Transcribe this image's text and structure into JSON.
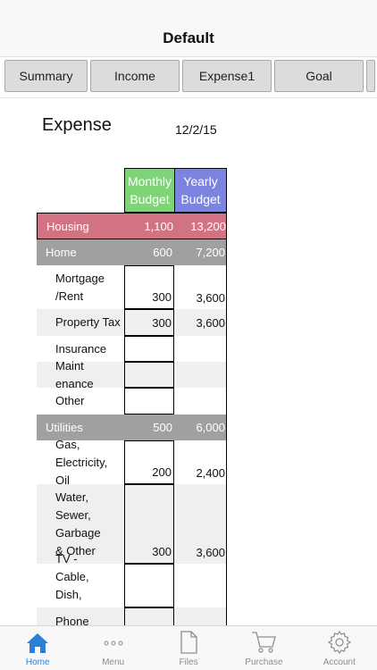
{
  "nav": {
    "title": "Default"
  },
  "tabs": [
    {
      "label": "Summary"
    },
    {
      "label": "Income"
    },
    {
      "label": "Expense1"
    },
    {
      "label": "Goal"
    }
  ],
  "sheet": {
    "title": "Expense",
    "date": "12/2/15",
    "columns": {
      "monthly": "Monthly Budget",
      "yearly": "Yearly Budget"
    },
    "colors": {
      "monthly": "#7ed477",
      "yearly": "#7d84e0",
      "category": "#d17383",
      "group": "#a0a0a0"
    },
    "rows": [
      {
        "label": "Housing",
        "monthly": "1,100",
        "yearly": "13,200"
      },
      {
        "label": "Home",
        "monthly": "600",
        "yearly": "7,200"
      },
      {
        "label": "Mortgage /Rent",
        "monthly": "300",
        "yearly": "3,600"
      },
      {
        "label": "Property Tax",
        "monthly": "300",
        "yearly": "3,600"
      },
      {
        "label": "Insurance",
        "monthly": "",
        "yearly": ""
      },
      {
        "label": "Maint enance",
        "monthly": "",
        "yearly": ""
      },
      {
        "label": "Other",
        "monthly": "",
        "yearly": ""
      },
      {
        "label": "Utilities",
        "monthly": "500",
        "yearly": "6,000"
      },
      {
        "label": "Gas, Electricity, Oil",
        "monthly": "200",
        "yearly": "2,400"
      },
      {
        "label": "Water, Sewer, Garbage &amp; Other",
        "monthly": "300",
        "yearly": "3,600"
      },
      {
        "label": "TV - Cable, Dish, Other",
        "monthly": "",
        "yearly": ""
      },
      {
        "label": "Phone",
        "monthly": "",
        "yearly": ""
      }
    ]
  },
  "tabbar": [
    {
      "label": "Home",
      "icon": "home-icon"
    },
    {
      "label": "Menu",
      "icon": "more-dots-icon"
    },
    {
      "label": "Files",
      "icon": "file-icon"
    },
    {
      "label": "Purchase",
      "icon": "cart-icon"
    },
    {
      "label": "Account",
      "icon": "gear-icon"
    }
  ]
}
